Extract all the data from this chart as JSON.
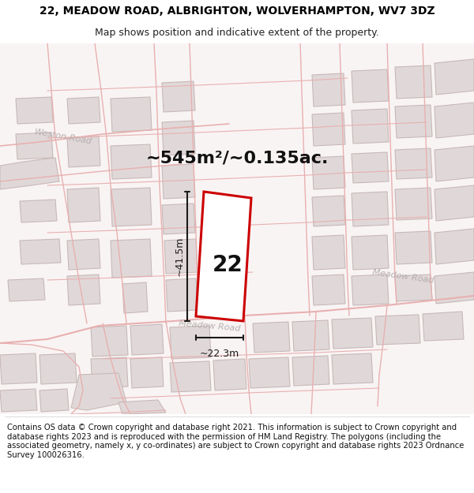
{
  "title_line1": "22, MEADOW ROAD, ALBRIGHTON, WOLVERHAMPTON, WV7 3DZ",
  "title_line2": "Map shows position and indicative extent of the property.",
  "footer_text": "Contains OS data © Crown copyright and database right 2021. This information is subject to Crown copyright and database rights 2023 and is reproduced with the permission of HM Land Registry. The polygons (including the associated geometry, namely x, y co-ordinates) are subject to Crown copyright and database rights 2023 Ordnance Survey 100026316.",
  "area_label": "~545m²/~0.135ac.",
  "property_number": "22",
  "dim_height": "~41.5m",
  "dim_width": "~22.3m",
  "road_label_bottom": "Meadow Road",
  "road_label_right": "Meadow Road",
  "road_label_weston": "Weston-Road",
  "map_bg": "#f9f6f6",
  "building_fill": "#e0d8d8",
  "building_stroke": "#c8b8b8",
  "road_line_color": "#e8b0b0",
  "property_fill": "#ffffff",
  "property_stroke": "#cc0000",
  "dim_line_color": "#1a1a1a",
  "road_text_color": "#b8b0b0",
  "title_fontsize": 10,
  "subtitle_fontsize": 9,
  "footer_fontsize": 7.2,
  "area_fontsize": 16,
  "number_fontsize": 20,
  "dim_fontsize": 9,
  "road_fontsize": 8
}
